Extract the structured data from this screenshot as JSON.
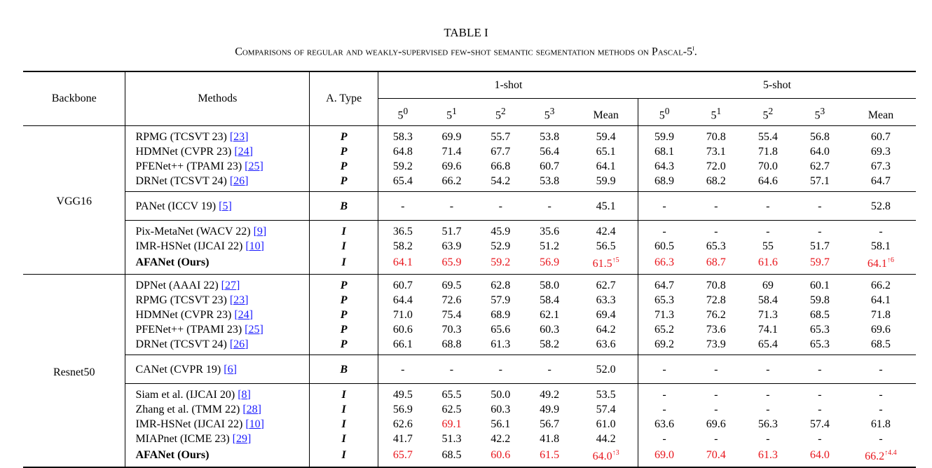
{
  "caption": {
    "title": "TABLE I",
    "text": "Comparisons of regular and weakly-supervised few-shot semantic segmentation methods on Pascal-5",
    "sup": "i",
    "end": "."
  },
  "header": {
    "backbone": "Backbone",
    "methods": "Methods",
    "atype": "A. Type",
    "one_shot": "1-shot",
    "five_shot": "5-shot",
    "folds": [
      {
        "base": "5",
        "sup": "0"
      },
      {
        "base": "5",
        "sup": "1"
      },
      {
        "base": "5",
        "sup": "2"
      },
      {
        "base": "5",
        "sup": "3"
      }
    ],
    "mean": "Mean"
  },
  "backbones": [
    {
      "name": "VGG16",
      "groups": [
        [
          {
            "method": "RPMG (TCSVT 23) ",
            "ref": "[23]",
            "type": "P",
            "one": [
              "58.3",
              "69.9",
              "55.7",
              "53.8",
              "59.4"
            ],
            "five": [
              "59.9",
              "70.8",
              "55.4",
              "56.8",
              "60.7"
            ]
          },
          {
            "method": "HDMNet (CVPR 23) ",
            "ref": "[24]",
            "type": "P",
            "one": [
              "64.8",
              "71.4",
              "67.7",
              "56.4",
              "65.1"
            ],
            "five": [
              "68.1",
              "73.1",
              "71.8",
              "64.0",
              "69.3"
            ]
          },
          {
            "method": "PFENet++ (TPAMI 23) ",
            "ref": "[25]",
            "type": "P",
            "one": [
              "59.2",
              "69.6",
              "66.8",
              "60.7",
              "64.1"
            ],
            "five": [
              "64.3",
              "72.0",
              "70.0",
              "62.7",
              "67.3"
            ]
          },
          {
            "method": "DRNet (TCSVT 24) ",
            "ref": "[26]",
            "type": "P",
            "one": [
              "65.4",
              "66.2",
              "54.2",
              "53.8",
              "59.9"
            ],
            "five": [
              "68.9",
              "68.2",
              "64.6",
              "57.1",
              "64.7"
            ]
          }
        ],
        [
          {
            "method": "PANet (ICCV 19) ",
            "ref": "[5]",
            "type": "B",
            "one": [
              "-",
              "-",
              "-",
              "-",
              "45.1"
            ],
            "five": [
              "-",
              "-",
              "-",
              "-",
              "52.8"
            ]
          }
        ],
        [
          {
            "method": "Pix-MetaNet (WACV 22) ",
            "ref": "[9]",
            "type": "I",
            "one": [
              "36.5",
              "51.7",
              "45.9",
              "35.6",
              "42.4"
            ],
            "five": [
              "-",
              "-",
              "-",
              "-",
              "-"
            ]
          },
          {
            "method": "IMR-HSNet (IJCAI 22) ",
            "ref": "[10]",
            "type": "I",
            "one": [
              "58.2",
              "63.9",
              "52.9",
              "51.2",
              "56.5"
            ],
            "five": [
              "60.5",
              "65.3",
              "55",
              "51.7",
              "58.1"
            ]
          },
          {
            "method": "AFANet (Ours)",
            "ref": "",
            "type": "I",
            "ours": true,
            "one": [
              "64.1",
              "65.9",
              "59.2",
              "56.9",
              "61.5"
            ],
            "one_sup": "↑5",
            "five": [
              "66.3",
              "68.7",
              "61.6",
              "59.7",
              "64.1"
            ],
            "five_sup": "↑6"
          }
        ]
      ]
    },
    {
      "name": "Resnet50",
      "groups": [
        [
          {
            "method": "DPNet (AAAI 22) ",
            "ref": "[27]",
            "type": "P",
            "one": [
              "60.7",
              "69.5",
              "62.8",
              "58.0",
              "62.7"
            ],
            "five": [
              "64.7",
              "70.8",
              "69",
              "60.1",
              "66.2"
            ]
          },
          {
            "method": "RPMG (TCSVT 23) ",
            "ref": "[23]",
            "type": "P",
            "one": [
              "64.4",
              "72.6",
              "57.9",
              "58.4",
              "63.3"
            ],
            "five": [
              "65.3",
              "72.8",
              "58.4",
              "59.8",
              "64.1"
            ]
          },
          {
            "method": "HDMNet (CVPR 23) ",
            "ref": "[24]",
            "type": "P",
            "one": [
              "71.0",
              "75.4",
              "68.9",
              "62.1",
              "69.4"
            ],
            "five": [
              "71.3",
              "76.2",
              "71.3",
              "68.5",
              "71.8"
            ]
          },
          {
            "method": "PFENet++ (TPAMI 23) ",
            "ref": "[25]",
            "type": "P",
            "one": [
              "60.6",
              "70.3",
              "65.6",
              "60.3",
              "64.2"
            ],
            "five": [
              "65.2",
              "73.6",
              "74.1",
              "65.3",
              "69.6"
            ]
          },
          {
            "method": "DRNet (TCSVT 24) ",
            "ref": "[26]",
            "type": "P",
            "one": [
              "66.1",
              "68.8",
              "61.3",
              "58.2",
              "63.6"
            ],
            "five": [
              "69.2",
              "73.9",
              "65.4",
              "65.3",
              "68.5"
            ]
          }
        ],
        [
          {
            "method": "CANet (CVPR 19) ",
            "ref": "[6]",
            "type": "B",
            "one": [
              "-",
              "-",
              "-",
              "-",
              "52.0"
            ],
            "five": [
              "-",
              "-",
              "-",
              "-",
              "-"
            ]
          }
        ],
        [
          {
            "method": "Siam et al. (IJCAI 20) ",
            "ref": "[8]",
            "type": "I",
            "one": [
              "49.5",
              "65.5",
              "50.0",
              "49.2",
              "53.5"
            ],
            "five": [
              "-",
              "-",
              "-",
              "-",
              "-"
            ]
          },
          {
            "method": "Zhang et al. (TMM 22) ",
            "ref": "[28]",
            "type": "I",
            "one": [
              "56.9",
              "62.5",
              "60.3",
              "49.9",
              "57.4"
            ],
            "five": [
              "-",
              "-",
              "-",
              "-",
              "-"
            ]
          },
          {
            "method": "IMR-HSNet (IJCAI 22) ",
            "ref": "[10]",
            "type": "I",
            "one": [
              "62.6",
              "69.1",
              "56.1",
              "56.7",
              "61.0"
            ],
            "one_red": [
              1
            ],
            "five": [
              "63.6",
              "69.6",
              "56.3",
              "57.4",
              "61.8"
            ]
          },
          {
            "method": "MIAPnet (ICME 23) ",
            "ref": "[29]",
            "type": "I",
            "one": [
              "41.7",
              "51.3",
              "42.2",
              "41.8",
              "44.2"
            ],
            "five": [
              "-",
              "-",
              "-",
              "-",
              "-"
            ]
          },
          {
            "method": "AFANet (Ours)",
            "ref": "",
            "type": "I",
            "ours": true,
            "one": [
              "65.7",
              "68.5",
              "60.6",
              "61.5",
              "64.0"
            ],
            "one_red": [
              0,
              2,
              3,
              4
            ],
            "one_sup": "↑3",
            "five": [
              "69.0",
              "70.4",
              "61.3",
              "64.0",
              "66.2"
            ],
            "five_sup": "↑4.4"
          }
        ]
      ]
    }
  ],
  "colors": {
    "highlight": "#e8141b",
    "link": "#1a1aff",
    "rule": "#000000"
  }
}
